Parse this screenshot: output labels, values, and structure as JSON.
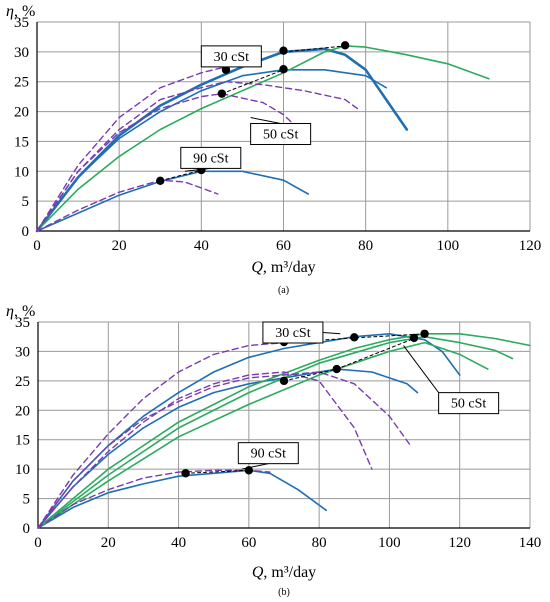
{
  "chart_data": [
    {
      "type": "line",
      "sublabel": "(a)",
      "ylabel_sym": "η",
      "ylabel_unit": ", %",
      "xlabel_sym": "Q",
      "xlabel_unit": ", m³/day",
      "xlim": [
        0,
        120
      ],
      "ylim": [
        0,
        35
      ],
      "xticks": [
        0,
        20,
        40,
        60,
        80,
        100,
        120
      ],
      "yticks": [
        0,
        5,
        10,
        15,
        20,
        25,
        30,
        35
      ],
      "grid": true,
      "colors": {
        "blue": "#1f6fb5",
        "green": "#2bab5e",
        "dashed": "#7a3bb0",
        "black": "#000000"
      },
      "series": [
        {
          "style": "blue-thick",
          "x": [
            0,
            10,
            20,
            30,
            40,
            50,
            60,
            70,
            75,
            80,
            85,
            90
          ],
          "y": [
            0,
            9,
            16,
            21,
            24.5,
            27.5,
            30,
            30.5,
            29.5,
            27,
            22,
            17
          ]
        },
        {
          "style": "blue",
          "x": [
            0,
            10,
            20,
            30,
            40,
            50,
            60,
            70,
            80,
            85
          ],
          "y": [
            0,
            9,
            15.5,
            20,
            23.5,
            26,
            27,
            27,
            26,
            24
          ]
        },
        {
          "style": "green",
          "x": [
            0,
            10,
            20,
            30,
            40,
            50,
            60,
            70,
            75,
            80,
            90,
            100,
            110
          ],
          "y": [
            0,
            7,
            12.5,
            17,
            20.5,
            23.5,
            26.5,
            30,
            31,
            30.8,
            29.5,
            28,
            25.5
          ]
        },
        {
          "style": "blue",
          "x": [
            0,
            10,
            20,
            30,
            40,
            50,
            60,
            66
          ],
          "y": [
            0,
            3,
            6,
            8.3,
            10,
            10,
            8.5,
            6.2
          ]
        },
        {
          "style": "dashed",
          "x": [
            0,
            10,
            20,
            30,
            40,
            46
          ],
          "y": [
            0,
            11,
            19,
            24,
            26.5,
            27.5
          ]
        },
        {
          "style": "dashed",
          "x": [
            0,
            10,
            20,
            30,
            40,
            46,
            55,
            65,
            75,
            78
          ],
          "y": [
            0,
            10,
            17,
            22,
            24,
            25,
            24.5,
            23.5,
            22,
            20.5
          ]
        },
        {
          "style": "dashed",
          "x": [
            0,
            10,
            20,
            30,
            40,
            45,
            55,
            60,
            63
          ],
          "y": [
            0,
            10,
            16.5,
            20.5,
            22.5,
            23,
            21.5,
            19.5,
            17.5
          ]
        },
        {
          "style": "dashed",
          "x": [
            0,
            10,
            20,
            30,
            36,
            44
          ],
          "y": [
            0,
            3.5,
            6.5,
            8.5,
            8.2,
            6.2
          ]
        },
        {
          "style": "black-dashed",
          "x": [
            60,
            75
          ],
          "y": [
            30,
            31
          ]
        },
        {
          "style": "black-dashed",
          "x": [
            45,
            60
          ],
          "y": [
            23,
            27
          ]
        },
        {
          "style": "black-dashed",
          "x": [
            30,
            40
          ],
          "y": [
            8.4,
            10.2
          ]
        }
      ],
      "points": [
        {
          "x": 46,
          "y": 27
        },
        {
          "x": 60,
          "y": 30.2
        },
        {
          "x": 75,
          "y": 31.1
        },
        {
          "x": 45,
          "y": 23
        },
        {
          "x": 60,
          "y": 27.1
        },
        {
          "x": 30,
          "y": 8.4
        },
        {
          "x": 40,
          "y": 10.2
        }
      ],
      "annotations": [
        {
          "text": "30 cSt",
          "box": [
            40,
            31
          ],
          "target": [
            51,
            29.5
          ]
        },
        {
          "text": "50 cSt",
          "box": [
            52,
            18
          ],
          "target": [
            52,
            19
          ]
        },
        {
          "text": "90 cSt",
          "box": [
            35,
            14
          ],
          "target": [
            36,
            10
          ]
        }
      ]
    },
    {
      "type": "line",
      "sublabel": "(b)",
      "ylabel_sym": "η",
      "ylabel_unit": ", %",
      "xlabel_sym": "Q",
      "xlabel_unit": ", m³/day",
      "xlim": [
        0,
        140
      ],
      "ylim": [
        0,
        35
      ],
      "xticks": [
        0,
        20,
        40,
        60,
        80,
        100,
        120,
        140
      ],
      "yticks": [
        0,
        5,
        10,
        15,
        20,
        25,
        30,
        35
      ],
      "grid": true,
      "colors": {
        "blue": "#1f6fb5",
        "green": "#2bab5e",
        "dashed": "#7a3bb0",
        "black": "#000000"
      },
      "series": [
        {
          "style": "blue",
          "x": [
            0,
            10,
            20,
            30,
            40,
            50,
            60,
            70,
            80,
            90,
            100,
            110,
            115,
            120
          ],
          "y": [
            0,
            8,
            14,
            19,
            23,
            26.5,
            29,
            30.5,
            31.5,
            32.5,
            33,
            32,
            30,
            26
          ]
        },
        {
          "style": "blue",
          "x": [
            0,
            10,
            20,
            30,
            40,
            50,
            60,
            70,
            80,
            85,
            95,
            105,
            108
          ],
          "y": [
            0,
            7,
            12.5,
            17,
            20.5,
            23,
            24.5,
            25.5,
            26.5,
            27,
            26.5,
            24.5,
            23
          ]
        },
        {
          "style": "blue",
          "x": [
            0,
            10,
            20,
            30,
            40,
            50,
            60,
            66,
            74,
            82
          ],
          "y": [
            0,
            3.5,
            6,
            7.5,
            8.8,
            9.3,
            9.8,
            9.3,
            6.5,
            3
          ]
        },
        {
          "style": "green",
          "x": [
            0,
            20,
            40,
            60,
            80,
            90,
            100,
            110,
            120,
            130,
            140
          ],
          "y": [
            0,
            10,
            18,
            24,
            28.5,
            30.5,
            32,
            33,
            33,
            32.2,
            31
          ]
        },
        {
          "style": "green",
          "x": [
            0,
            20,
            40,
            60,
            80,
            100,
            110,
            120,
            130,
            135
          ],
          "y": [
            0,
            9,
            17,
            23,
            28,
            31.5,
            32.5,
            31.5,
            30.2,
            28.8
          ]
        },
        {
          "style": "green",
          "x": [
            0,
            20,
            40,
            60,
            80,
            100,
            110,
            120,
            128
          ],
          "y": [
            0,
            8,
            15.5,
            21,
            26,
            30,
            31.5,
            29.5,
            27
          ]
        },
        {
          "style": "dashed",
          "x": [
            0,
            10,
            20,
            30,
            40,
            50,
            60,
            70,
            75
          ],
          "y": [
            0,
            9,
            16,
            22,
            26.5,
            29.5,
            31,
            31.5,
            31.5
          ]
        },
        {
          "style": "dashed",
          "x": [
            0,
            10,
            20,
            30,
            40,
            50,
            60,
            70,
            80,
            90,
            100,
            106
          ],
          "y": [
            0,
            8,
            14,
            18.5,
            21.5,
            24,
            25.5,
            26,
            26.5,
            24.5,
            19,
            14
          ]
        },
        {
          "style": "dashed",
          "x": [
            0,
            10,
            20,
            30,
            40,
            50,
            60,
            70,
            80,
            90,
            95
          ],
          "y": [
            0,
            7,
            13,
            18,
            22,
            24.5,
            26,
            26.5,
            25,
            17,
            10
          ]
        },
        {
          "style": "dashed",
          "x": [
            0,
            10,
            20,
            30,
            40,
            50,
            60,
            66
          ],
          "y": [
            0,
            4,
            6.5,
            8.5,
            9.5,
            9.8,
            9.8,
            9.5
          ]
        },
        {
          "style": "black-dashed",
          "x": [
            70,
            90,
            110
          ],
          "y": [
            31.5,
            32.3,
            33
          ]
        },
        {
          "style": "black-dashed",
          "x": [
            70,
            85,
            107
          ],
          "y": [
            25,
            27,
            32.2
          ]
        },
        {
          "style": "black-dashed",
          "x": [
            42,
            60
          ],
          "y": [
            9.3,
            9.8
          ]
        }
      ],
      "points": [
        {
          "x": 70,
          "y": 31.6
        },
        {
          "x": 90,
          "y": 32.4
        },
        {
          "x": 110,
          "y": 33
        },
        {
          "x": 70,
          "y": 25
        },
        {
          "x": 85,
          "y": 27
        },
        {
          "x": 107,
          "y": 32.3
        },
        {
          "x": 42,
          "y": 9.3
        },
        {
          "x": 60,
          "y": 9.8
        }
      ],
      "annotations": [
        {
          "text": "30 cSt",
          "box": [
            64,
            35
          ],
          "target": [
            86,
            33
          ]
        },
        {
          "text": "50 cSt",
          "box": [
            114,
            23
          ],
          "target": [
            104,
            31
          ]
        },
        {
          "text": "90 cSt",
          "box": [
            57,
            14.5
          ],
          "target": [
            58,
            10
          ]
        }
      ]
    }
  ]
}
